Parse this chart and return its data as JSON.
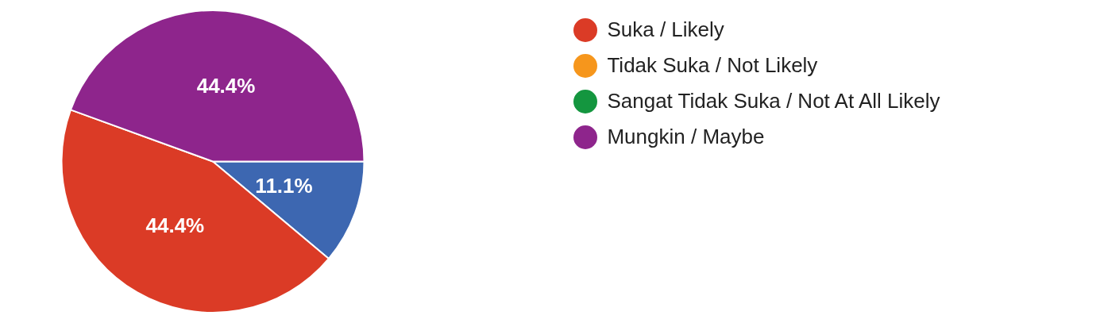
{
  "chart_data": {
    "type": "pie",
    "categories": [
      null,
      "Suka / Likely",
      "Tidak Suka / Not Likely",
      "Sangat Tidak Suka / Not At All Likely",
      "Mungkin / Maybe"
    ],
    "values": [
      11.1,
      44.4,
      0,
      0,
      44.4
    ],
    "colors": [
      "#3d67b1",
      "#db3b26",
      "#f6961c",
      "#14963f",
      "#8e258c"
    ],
    "value_labels": [
      "11.1%",
      "44.4%",
      null,
      null,
      "44.4%"
    ],
    "legend": "top right"
  }
}
